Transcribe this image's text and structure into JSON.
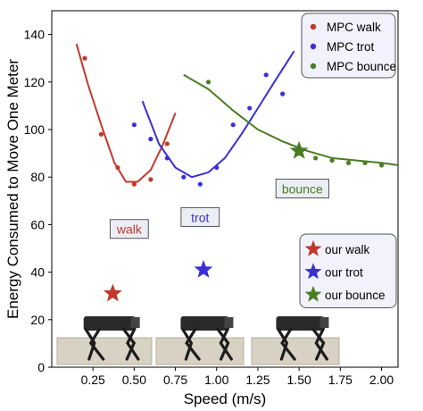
{
  "chart_data": {
    "type": "scatter",
    "xlabel": "Speed (m/s)",
    "ylabel": "Energy Consumed to Move One Meter",
    "xlim": [
      0,
      2.1
    ],
    "ylim": [
      0,
      150
    ],
    "xticks": [
      "0.25",
      "0.50",
      "0.75",
      "1.00",
      "1.25",
      "1.50",
      "1.75",
      "2.00"
    ],
    "yticks": [
      "0",
      "20",
      "40",
      "60",
      "80",
      "100",
      "120",
      "140"
    ],
    "grid": false,
    "series": [
      {
        "name": "MPC walk",
        "color": "#c0392b",
        "marker": "dot",
        "x": [
          0.2,
          0.3,
          0.4,
          0.5,
          0.6,
          0.7
        ],
        "y": [
          130,
          98,
          84,
          77,
          79,
          94
        ],
        "fit_x": [
          0.15,
          0.22,
          0.3,
          0.38,
          0.45,
          0.52,
          0.6,
          0.67,
          0.75
        ],
        "fit_y": [
          136,
          119,
          102,
          86,
          78,
          78,
          83,
          93,
          107
        ]
      },
      {
        "name": "MPC trot",
        "color": "#3a2fd6",
        "marker": "dot",
        "x": [
          0.5,
          0.6,
          0.7,
          0.8,
          0.9,
          1.0,
          1.1,
          1.2,
          1.3,
          1.4
        ],
        "y": [
          102,
          96,
          88,
          80,
          77,
          84,
          102,
          109,
          123,
          115
        ],
        "fit_x": [
          0.55,
          0.65,
          0.75,
          0.85,
          0.95,
          1.05,
          1.15,
          1.25,
          1.35,
          1.47
        ],
        "fit_y": [
          112,
          94,
          84,
          80,
          82,
          88,
          98,
          109,
          120,
          133
        ]
      },
      {
        "name": "MPC bounce",
        "color": "#4a7c23",
        "marker": "dot",
        "x": [
          0.95,
          1.5,
          1.6,
          1.7,
          1.8,
          1.9,
          2.0
        ],
        "y": [
          120,
          90,
          88,
          87,
          86,
          86,
          85
        ],
        "fit_x": [
          0.8,
          0.95,
          1.1,
          1.25,
          1.4,
          1.55,
          1.7,
          1.85,
          2.0,
          2.1
        ],
        "fit_y": [
          123,
          117,
          108,
          100,
          95,
          91,
          88,
          87,
          86,
          85
        ]
      },
      {
        "name": "our walk",
        "color": "#c0392b",
        "marker": "star",
        "x": [
          0.37
        ],
        "y": [
          31
        ]
      },
      {
        "name": "our trot",
        "color": "#3a2fd6",
        "marker": "star",
        "x": [
          0.92
        ],
        "y": [
          41
        ]
      },
      {
        "name": "our bounce",
        "color": "#4a7c23",
        "marker": "star",
        "x": [
          1.5
        ],
        "y": [
          91
        ]
      }
    ],
    "annotations": [
      {
        "text": "walk",
        "x": 0.47,
        "y": 58,
        "color": "#c0392b"
      },
      {
        "text": "trot",
        "x": 0.9,
        "y": 63,
        "color": "#3a2fd6"
      },
      {
        "text": "bounce",
        "x": 1.52,
        "y": 75,
        "color": "#4a7c23"
      }
    ],
    "legend_top": [
      "MPC walk",
      "MPC trot",
      "MPC bounce"
    ],
    "legend_bottom": [
      "our walk",
      "our trot",
      "our bounce"
    ],
    "legend_placement": [
      "top-right",
      "right"
    ],
    "robot_images": [
      "robot-walk-photo",
      "robot-trot-photo",
      "robot-bounce-photo"
    ]
  }
}
